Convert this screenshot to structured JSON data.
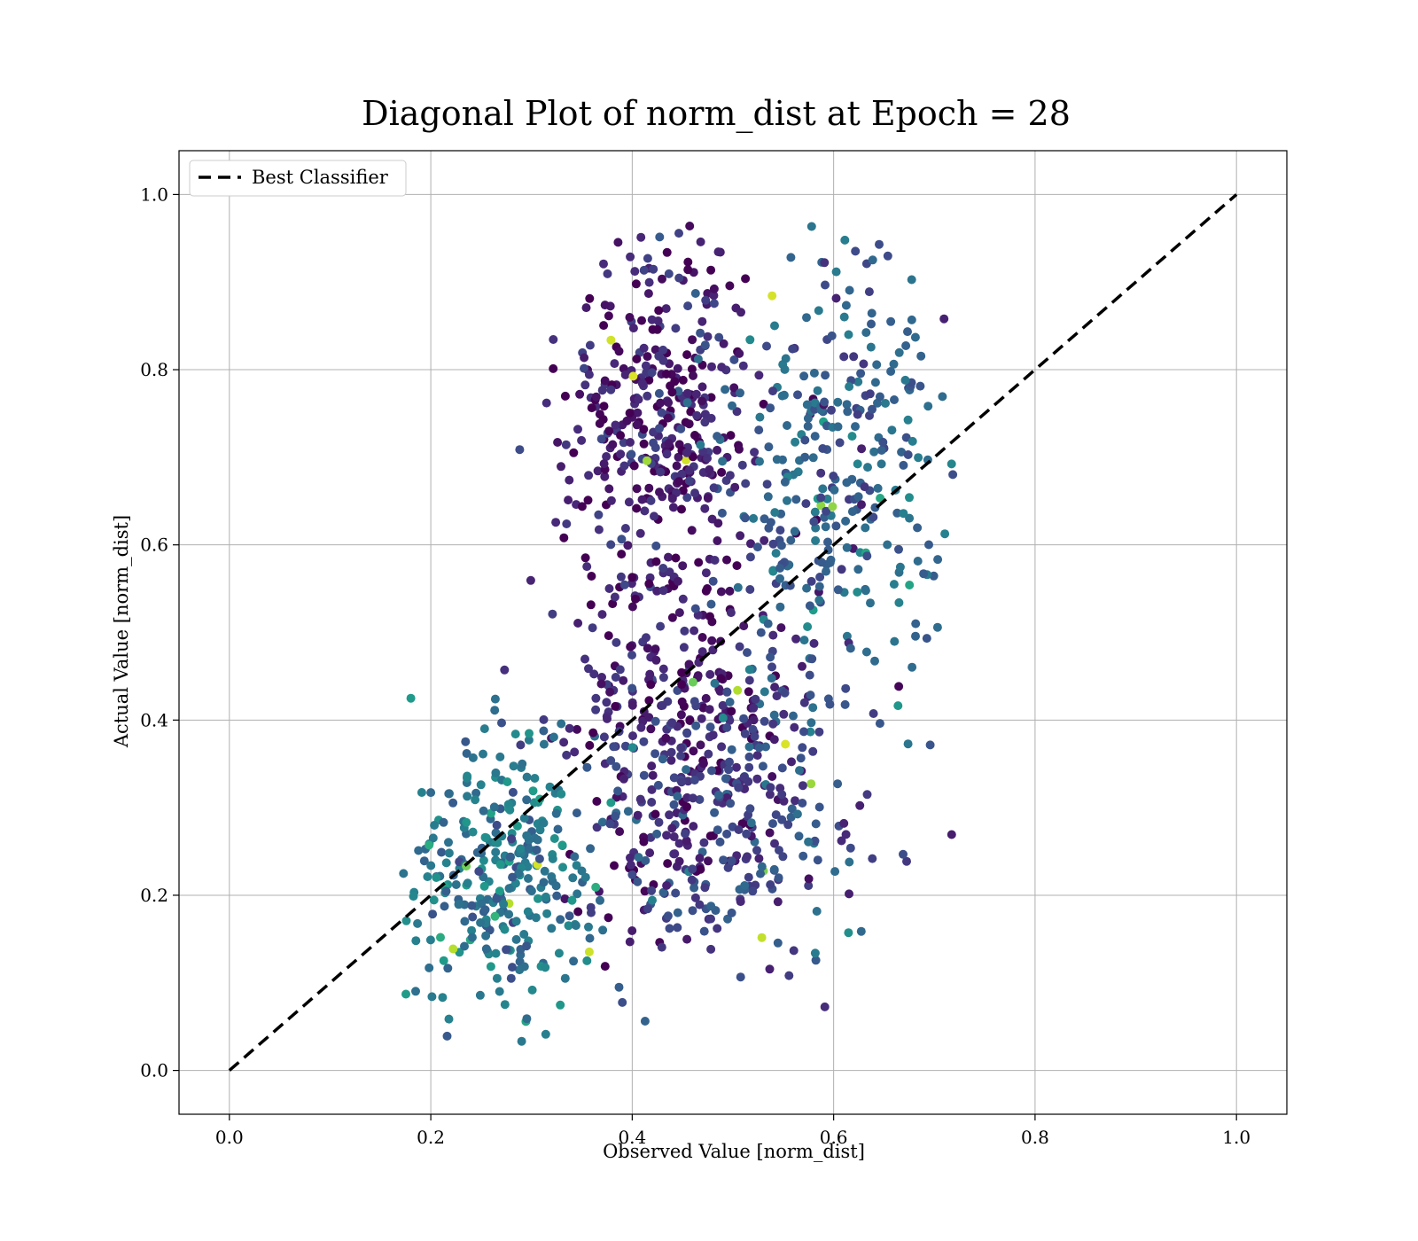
{
  "chart_data": {
    "type": "scatter",
    "title": "Diagonal Plot of norm_dist at Epoch = 28",
    "xlabel": "Observed Value [norm_dist]",
    "ylabel": "Actual Value [norm_dist]",
    "xlim": [
      -0.05,
      1.05
    ],
    "ylim": [
      -0.05,
      1.05
    ],
    "xticks": [
      0.0,
      0.2,
      0.4,
      0.6,
      0.8,
      1.0
    ],
    "yticks": [
      0.0,
      0.2,
      0.4,
      0.6,
      0.8,
      1.0
    ],
    "xtick_labels": [
      "0.0",
      "0.2",
      "0.4",
      "0.6",
      "0.8",
      "1.0"
    ],
    "ytick_labels": [
      "0.0",
      "0.2",
      "0.4",
      "0.6",
      "0.8",
      "1.0"
    ],
    "grid": true,
    "legend": {
      "placement": "top-left",
      "entries": [
        {
          "label": "Best Classifier",
          "style": "dashed",
          "color": "#000000"
        }
      ]
    },
    "reference_line": {
      "x": [
        0.0,
        1.0
      ],
      "y": [
        0.0,
        1.0
      ],
      "style": "dashed",
      "color": "#000000"
    },
    "colormap": "viridis",
    "series": [
      {
        "approx_point_count": 1600,
        "x_range": [
          0.17,
          0.72
        ],
        "y_range": [
          0.02,
          0.97
        ],
        "clusters": [
          {
            "x": 0.43,
            "y": 0.75,
            "sx": 0.05,
            "sy": 0.1,
            "weight": 0.22,
            "c": 0.08
          },
          {
            "x": 0.44,
            "y": 0.4,
            "sx": 0.055,
            "sy": 0.13,
            "weight": 0.24,
            "c": 0.1
          },
          {
            "x": 0.6,
            "y": 0.68,
            "sx": 0.055,
            "sy": 0.12,
            "weight": 0.2,
            "c": 0.32
          },
          {
            "x": 0.27,
            "y": 0.22,
            "sx": 0.05,
            "sy": 0.08,
            "weight": 0.2,
            "c": 0.4
          },
          {
            "x": 0.52,
            "y": 0.3,
            "sx": 0.06,
            "sy": 0.1,
            "weight": 0.14,
            "c": 0.22
          }
        ]
      }
    ]
  }
}
